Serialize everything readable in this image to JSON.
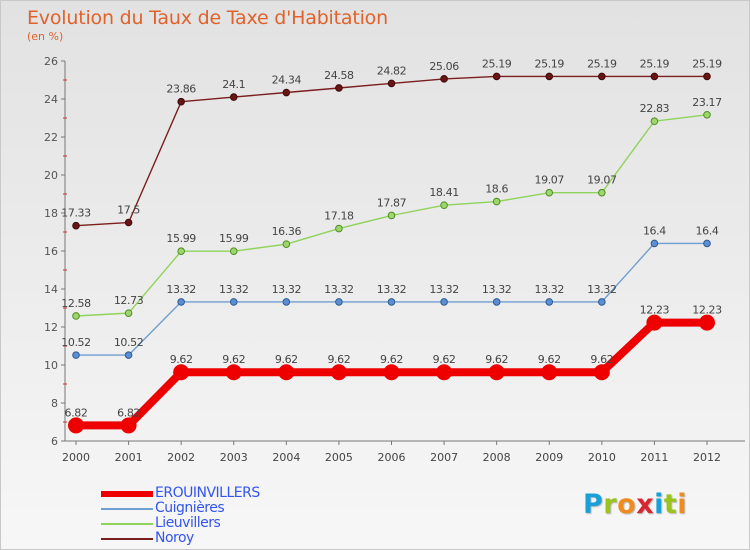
{
  "title": "Evolution du Taux de Taxe d'Habitation",
  "subtitle": "(en %)",
  "logo": {
    "text": "Proxiti",
    "letters": [
      "P",
      "r",
      "o",
      "x",
      "i",
      "t",
      "i"
    ],
    "colors": [
      "#1aa0d8",
      "#9ac31c",
      "#f08c1e",
      "#d9262e",
      "#1aa0d8",
      "#9ac31c",
      "#f08c1e"
    ]
  },
  "chart_data": {
    "type": "line",
    "title": "Evolution du Taux de Taxe d'Habitation",
    "ylabel": "(en %)",
    "xlabel": "",
    "x": [
      "2000",
      "2001",
      "2002",
      "2003",
      "2004",
      "2005",
      "2006",
      "2007",
      "2008",
      "2009",
      "2010",
      "2011",
      "2012"
    ],
    "ylim": [
      6,
      26
    ],
    "yticks": [
      "6",
      "8",
      "10",
      "12",
      "14",
      "16",
      "18",
      "20",
      "22",
      "24",
      "26"
    ],
    "grid": false,
    "legend_position": "bottom-left",
    "series": [
      {
        "name": "Noroy",
        "color": "#7a1e1e",
        "values": [
          17.33,
          17.5,
          23.86,
          24.1,
          24.34,
          24.58,
          24.82,
          25.06,
          25.19,
          25.19,
          25.19,
          25.19,
          25.19
        ],
        "labels": [
          "17.33",
          "17.5",
          "23.86",
          "24.1",
          "24.34",
          "24.58",
          "24.82",
          "25.06",
          "25.19",
          "25.19",
          "25.19",
          "25.19",
          "25.19"
        ]
      },
      {
        "name": "Lieuvillers",
        "color": "#8fd35a",
        "values": [
          12.58,
          12.73,
          15.99,
          15.99,
          16.36,
          17.18,
          17.87,
          18.41,
          18.6,
          19.07,
          19.07,
          22.83,
          23.17
        ],
        "labels": [
          "12.58",
          "12.73",
          "15.99",
          "15.99",
          "16.36",
          "17.18",
          "17.87",
          "18.41",
          "18.6",
          "19.07",
          "19.07",
          "22.83",
          "23.17"
        ]
      },
      {
        "name": "Cuignières",
        "color": "#6f9ed0",
        "values": [
          10.52,
          10.52,
          13.32,
          13.32,
          13.32,
          13.32,
          13.32,
          13.32,
          13.32,
          13.32,
          13.32,
          16.4,
          16.4
        ],
        "labels": [
          "10.52",
          "10.52",
          "13.32",
          "13.32",
          "13.32",
          "13.32",
          "13.32",
          "13.32",
          "13.32",
          "13.32",
          "13.32",
          "16.4",
          "16.4"
        ]
      },
      {
        "name": "EROUINVILLERS",
        "color": "#ee0000",
        "values": [
          6.82,
          6.82,
          9.62,
          9.62,
          9.62,
          9.62,
          9.62,
          9.62,
          9.62,
          9.62,
          9.62,
          12.23,
          12.23
        ],
        "labels": [
          "6.82",
          "6.82",
          "9.62",
          "9.62",
          "9.62",
          "9.62",
          "9.62",
          "9.62",
          "9.62",
          "9.62",
          "9.62",
          "12.23",
          "12.23"
        ]
      }
    ]
  },
  "legend": [
    {
      "name": "EROUINVILLERS",
      "color": "#ee0000",
      "text_color": "#3355ee"
    },
    {
      "name": "Cuignières",
      "color": "#6f9ed0",
      "text_color": "#3355ee"
    },
    {
      "name": "Lieuvillers",
      "color": "#8fd35a",
      "text_color": "#3355ee"
    },
    {
      "name": "Noroy",
      "color": "#7a1e1e",
      "text_color": "#3355ee"
    }
  ]
}
